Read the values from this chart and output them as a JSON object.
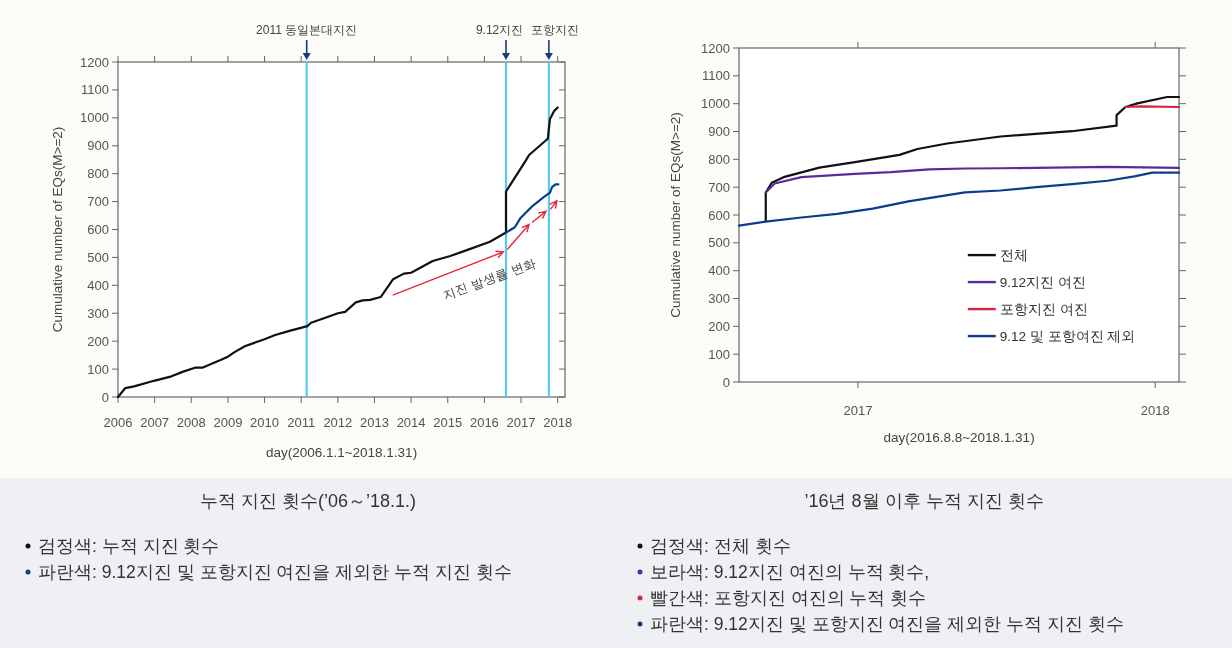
{
  "chart_data": [
    {
      "type": "line",
      "title": "누적 지진 횟수(’06～’18.1.)",
      "xlabel": "day(2006.1.1~2018.1.31)",
      "ylabel": "Cumulative number of EQs(M>=2)",
      "xlim": [
        2006,
        2018.2
      ],
      "ylim": [
        0,
        1200
      ],
      "xticks": [
        2006,
        2007,
        2008,
        2009,
        2010,
        2011,
        2012,
        2013,
        2014,
        2015,
        2016,
        2017,
        2018
      ],
      "yticks": [
        0,
        100,
        200,
        300,
        400,
        500,
        600,
        700,
        800,
        900,
        1000,
        1100,
        1200
      ],
      "series": [
        {
          "color": "#111111",
          "x": [
            2006,
            2006.2,
            2006.44,
            2006.98,
            2007.46,
            2007.76,
            2008.1,
            2008.3,
            2008.83,
            2008.98,
            2009.17,
            2009.46,
            2010.0,
            2010.29,
            2010.68,
            2011.17,
            2011.27,
            2011.66,
            2012.0,
            2012.2,
            2012.49,
            2012.68,
            2012.88,
            2013.17,
            2013.51,
            2013.8,
            2014.0,
            2014.59,
            2015.07,
            2015.56,
            2016.15,
            2016.59,
            2016.59,
            2017.12,
            2017.22,
            2017.73,
            2017.79,
            2017.9,
            2018.0
          ],
          "values": [
            0,
            32,
            38,
            58,
            74,
            90,
            105,
            105,
            134,
            143,
            160,
            182,
            207,
            222,
            237,
            254,
            266,
            284,
            300,
            305,
            339,
            346,
            348,
            358,
            422,
            442,
            445,
            487,
            505,
            528,
            556,
            589,
            736,
            845,
            867,
            925,
            996,
            1024,
            1037
          ]
        },
        {
          "color": "#0a3d8a",
          "x": [
            2016.59,
            2016.83,
            2016.98,
            2017.32,
            2017.61,
            2017.79,
            2017.85,
            2017.95,
            2018.02
          ],
          "values": [
            589,
            608,
            640,
            685,
            715,
            732,
            753,
            762,
            762
          ]
        }
      ],
      "ref_lines": [
        {
          "axis": "x",
          "value": 2011.15,
          "label": "2011 동일본대지진",
          "color": "#5bc8f0"
        },
        {
          "axis": "x",
          "value": 2016.59,
          "label": "9.12지진",
          "color": "#5bc8f0"
        },
        {
          "axis": "x",
          "value": 2017.76,
          "label": "포항지진",
          "color": "#5bc8f0"
        }
      ],
      "annotations": [
        "지진 발생률 변화",
        "검정색: 누적 지진 횟수",
        "파란색: 9.12지진 및 포항지진 여진을 제외한 누적 지진 횟수"
      ],
      "legend": false
    },
    {
      "type": "line",
      "title": "’16년 8월 이후 누적 지진 횟수",
      "xlabel": "day(2016.8.8~2018.1.31)",
      "ylabel": "Cumulative number of EQs(M>=2)",
      "xlim": [
        2016.6,
        2018.08
      ],
      "ylim": [
        0,
        1200
      ],
      "xticks": [
        2017,
        2018
      ],
      "yticks": [
        0,
        100,
        200,
        300,
        400,
        500,
        600,
        700,
        800,
        900,
        1000,
        1100,
        1200
      ],
      "series": [
        {
          "name": "전체",
          "color": "#111111",
          "x": [
            2016.69,
            2016.69,
            2016.71,
            2016.75,
            2016.87,
            2016.99,
            2017.14,
            2017.2,
            2017.3,
            2017.48,
            2017.72,
            2017.87,
            2017.87,
            2017.9,
            2017.94,
            2018.04,
            2018.08
          ],
          "values": [
            579,
            681,
            716,
            736,
            770,
            790,
            816,
            837,
            857,
            882,
            901,
            921,
            959,
            988,
            1001,
            1024,
            1024
          ]
        },
        {
          "name": "9.12지진 여진",
          "color": "#5b2a9a",
          "x": [
            2016.69,
            2016.72,
            2016.81,
            2016.99,
            2017.11,
            2017.24,
            2017.36,
            2017.48,
            2017.84,
            2018.08
          ],
          "values": [
            681,
            713,
            736,
            748,
            754,
            764,
            767,
            768,
            773,
            769
          ]
        },
        {
          "name": "포항지진 여진",
          "color": "#d7263d",
          "x": [
            2017.9,
            2017.95,
            2018.08
          ],
          "values": [
            988,
            990,
            988
          ]
        },
        {
          "name": "9.12 및 포항여진 제외",
          "color": "#0a3d8a",
          "x": [
            2016.6,
            2016.69,
            2016.81,
            2016.93,
            2017.05,
            2017.17,
            2017.36,
            2017.48,
            2017.6,
            2017.72,
            2017.84,
            2017.93,
            2017.99,
            2018.08
          ],
          "values": [
            562,
            576,
            591,
            604,
            623,
            649,
            681,
            688,
            700,
            711,
            723,
            739,
            752,
            752
          ]
        }
      ],
      "annotations": [
        "검정색: 전체 횟수",
        "보라색: 9.12지진 여진의 누적 횟수,",
        "빨간색: 포항지진 여진의 누적 횟수",
        "파란색: 9.12지진 및 포항지진 여진을 제외한 누적 지진 횟수"
      ],
      "legend": "bottom right"
    }
  ]
}
